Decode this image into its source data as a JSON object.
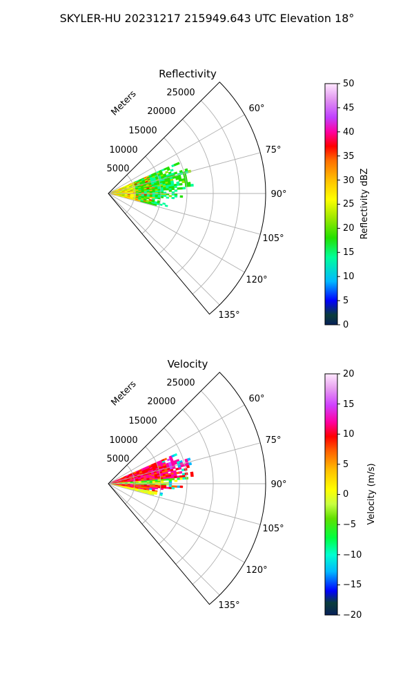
{
  "figure": {
    "suptitle": "SKYLER-HU  20231217  215949.643 UTC Elevation 18°"
  },
  "chart_data": [
    {
      "type": "heatmap",
      "subtype": "polar-sector-radar-ppi",
      "title": "Reflectivity",
      "radial_axis_label": "Meters",
      "radial_ticks": [
        "5000",
        "10000",
        "15000",
        "20000",
        "25000"
      ],
      "radial_range": [
        0,
        30000
      ],
      "angle_ticks": [
        "60°",
        "75°",
        "90°",
        "105°",
        "120°",
        "135°"
      ],
      "angle_range_deg": [
        45,
        140
      ],
      "grid": true,
      "colorbar": {
        "label": "Reflectivity dBZ",
        "range": [
          0,
          50
        ],
        "ticks": [
          "0",
          "5",
          "10",
          "15",
          "20",
          "25",
          "30",
          "35",
          "40",
          "45",
          "50"
        ]
      },
      "echo_extent": {
        "range_m": [
          0,
          16000
        ],
        "angle_deg": [
          66,
          104
        ],
        "dominant_values_dbz": [
          16,
          25
        ],
        "near_range_values_dbz": [
          30,
          38
        ]
      }
    },
    {
      "type": "heatmap",
      "subtype": "polar-sector-radar-ppi",
      "title": "Velocity",
      "radial_axis_label": "Meters",
      "radial_ticks": [
        "5000",
        "10000",
        "15000",
        "20000",
        "25000"
      ],
      "radial_range": [
        0,
        30000
      ],
      "angle_ticks": [
        "60°",
        "75°",
        "90°",
        "105°",
        "120°",
        "135°"
      ],
      "angle_range_deg": [
        45,
        140
      ],
      "grid": true,
      "colorbar": {
        "label": "Velocity (m/s)",
        "range": [
          -20,
          20
        ],
        "ticks": [
          "−20",
          "−15",
          "−10",
          "−5",
          "0",
          "5",
          "10",
          "15",
          "20"
        ]
      },
      "echo_extent": {
        "range_m": [
          0,
          16000
        ],
        "angle_deg": [
          66,
          104
        ],
        "values_ms": [
          -12,
          15
        ]
      }
    }
  ]
}
